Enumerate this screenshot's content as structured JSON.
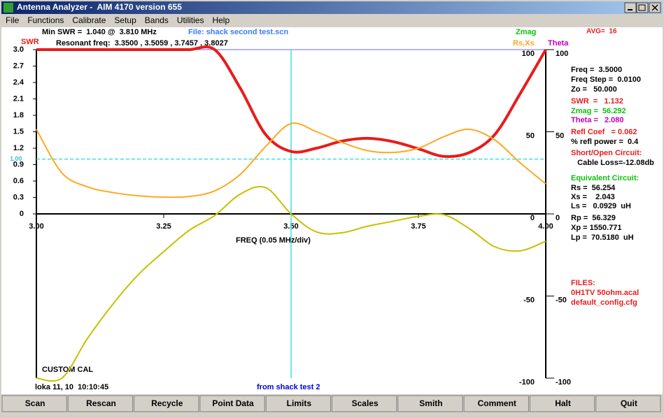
{
  "window": {
    "title": "Antenna Analyzer -  AIM 4170 version 655",
    "menu": [
      "File",
      "Functions",
      "Calibrate",
      "Setup",
      "Bands",
      "Utilities",
      "Help"
    ]
  },
  "header": {
    "min_swr": "Min SWR =  1.040 @  3.810 MHz",
    "file": "File: shack second test.scn",
    "resonant": "Resonant freq:  3.3500 , 3.5059 , 3.7457 , 3.8027",
    "avg": "AVG=  16"
  },
  "chart_data": {
    "type": "line",
    "x_label": "FREQ (0.05 MHz/div)",
    "y_label": "SWR",
    "y2_label": "Rs,Xs",
    "labels": [
      {
        "text": "Zmag",
        "color": "#10c010"
      },
      {
        "text": "Theta",
        "color": "#c000c0"
      }
    ],
    "x": [
      3.0,
      3.05,
      3.1,
      3.15,
      3.2,
      3.25,
      3.3,
      3.35,
      3.4,
      3.45,
      3.5,
      3.55,
      3.6,
      3.65,
      3.7,
      3.75,
      3.8,
      3.85,
      3.9,
      3.95,
      4.0
    ],
    "xlim": [
      3,
      4
    ],
    "xticks": [
      {
        "value": 3,
        "label": "3.00"
      },
      {
        "value": 3.25,
        "label": "3.25"
      },
      {
        "value": 3.5,
        "label": "3.50"
      },
      {
        "value": 3.75,
        "label": "3.75"
      },
      {
        "value": 4,
        "label": "4.00"
      }
    ],
    "ylim": [
      0,
      3
    ],
    "yticks": [
      0,
      0.3,
      0.6,
      0.9,
      1.2,
      1.5,
      1.8,
      2.1,
      2.4,
      2.7,
      {
        "value": 3,
        "label": "3.0"
      }
    ],
    "y2lim": [
      -100,
      100
    ],
    "y2ticks": [
      -100,
      -50,
      0,
      50,
      100
    ],
    "cursor": 3.5,
    "swr_reference": {
      "value": 1,
      "label": "1.00"
    },
    "series": [
      {
        "color": "#e81c1c",
        "width": 4,
        "values": [
          3.0,
          3.0,
          3.0,
          3.0,
          3.0,
          3.0,
          3.0,
          3.0,
          2.3,
          1.45,
          1.14,
          1.2,
          1.33,
          1.38,
          1.32,
          1.19,
          1.05,
          1.12,
          1.45,
          2.2,
          3.0
        ]
      },
      {
        "color": "#ffa820",
        "width": 2,
        "axis": "y2",
        "values": [
          51.5,
          25,
          16.5,
          13,
          11,
          10.2,
          10.6,
          14,
          24,
          41,
          55,
          50,
          43.5,
          38.5,
          37.4,
          40,
          47,
          51.5,
          45,
          31,
          18.3
        ]
      },
      {
        "color": "#c8c000",
        "width": 2,
        "axis": "y2",
        "values": [
          -100,
          -100,
          -76,
          -55,
          -37,
          -23,
          -10,
          -1,
          12,
          16,
          0,
          -11,
          -11.5,
          -7.5,
          -4.5,
          -1.5,
          -0.5,
          -9,
          -20,
          -22.5,
          -16.6
        ]
      }
    ]
  },
  "panel": {
    "lines": [
      {
        "text": "Freq =  3.5000",
        "color": "#000000"
      },
      {
        "text": "Freq Step =  0.0100",
        "color": "#000000"
      },
      {
        "text": "Zo =   50.000",
        "color": "#000000"
      },
      {
        "text": "SWR  =   1.132",
        "color": "#e81c1c"
      },
      {
        "text": "Zmag =  56.292",
        "color": "#10c010"
      },
      {
        "text": "Theta =   2.080",
        "color": "#c000c0"
      },
      {
        "text": "Refl Coef   = 0.062",
        "color": "#e81c1c"
      },
      {
        "text": "% refl power =  0.4",
        "color": "#000000"
      },
      {
        "text": "Short/Open Circuit:",
        "color": "#e81c1c"
      },
      {
        "text": "   Cable Loss=-12.08db",
        "color": "#000000"
      },
      {
        "text": "Equivalent Circuit:",
        "color": "#10c010"
      },
      {
        "text": "Rs =  56.254",
        "color": "#000000"
      },
      {
        "text": "Xs =    2.043",
        "color": "#000000"
      },
      {
        "text": "Ls =   0.0929  uH",
        "color": "#000000"
      },
      {
        "text": "Rp =  56.329",
        "color": "#000000"
      },
      {
        "text": "Xp = 1550.771",
        "color": "#000000"
      },
      {
        "text": "Lp =  70.5180  uH",
        "color": "#000000"
      },
      {
        "text": "FILES:",
        "color": "#e81c1c"
      },
      {
        "text": "0H1TV 50ohm.acal",
        "color": "#e81c1c"
      },
      {
        "text": "default_config.cfg",
        "color": "#e81c1c"
      }
    ]
  },
  "status": {
    "cal": "CUSTOM CAL",
    "time": "loka 11, 10  10:10:45",
    "note": "from shack test 2"
  },
  "buttons": [
    "Scan",
    "Rescan",
    "Recycle",
    "Point Data",
    "Limits",
    "Scales",
    "Smith",
    "Comment",
    "Halt",
    "Quit"
  ]
}
